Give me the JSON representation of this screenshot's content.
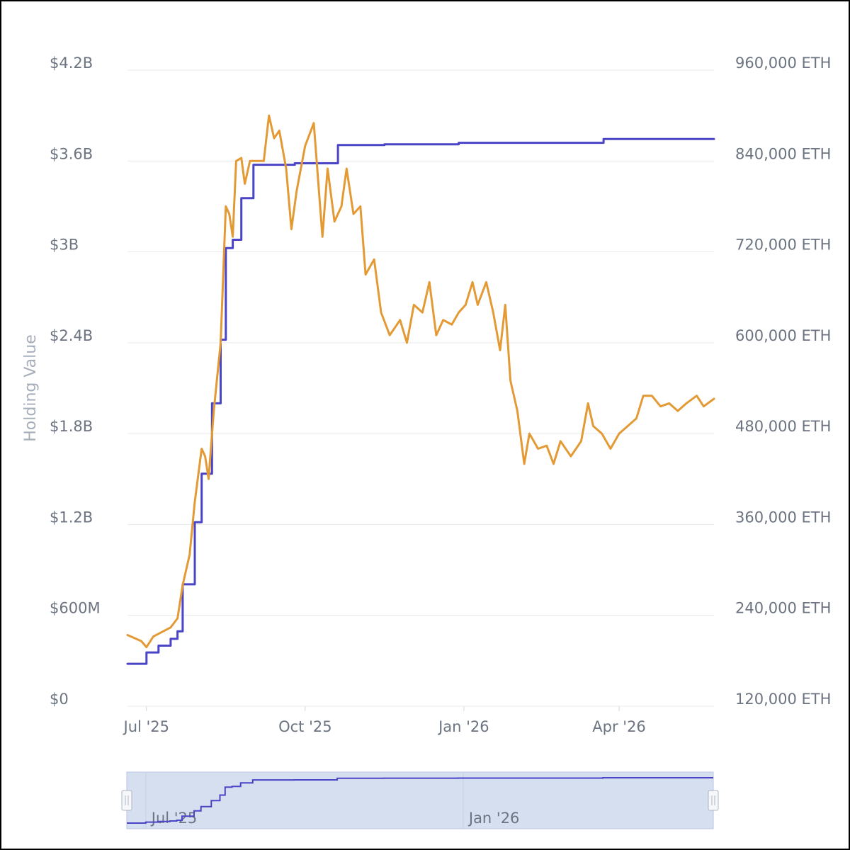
{
  "chart_data": {
    "type": "line",
    "title": "",
    "ylabel": "Holding Value",
    "ylim": [
      0,
      4200000000
    ],
    "y2lim": [
      120000,
      960000
    ],
    "yticks": [
      0,
      600000000,
      1200000000,
      1800000000,
      2400000000,
      3000000000,
      3600000000,
      4200000000
    ],
    "ytick_labels": [
      "$0",
      "$600M",
      "$1.2B",
      "$1.8B",
      "$2.4B",
      "$3B",
      "$3.6B",
      "$4.2B"
    ],
    "y2ticks": [
      120000,
      240000,
      360000,
      480000,
      600000,
      720000,
      840000,
      960000
    ],
    "y2tick_labels": [
      "120,000 ETH",
      "240,000 ETH",
      "360,000 ETH",
      "480,000 ETH",
      "600,000 ETH",
      "720,000 ETH",
      "840,000 ETH",
      "960,000 ETH"
    ],
    "xlim": [
      "2025-06-20",
      "2026-05-26"
    ],
    "xticks": [
      "2025-07-01",
      "2025-10-01",
      "2026-01-01",
      "2026-04-01"
    ],
    "xtick_labels": [
      "Jul '25",
      "Oct '25",
      "Jan '26",
      "Apr '26"
    ],
    "grid": true,
    "series": [
      {
        "name": "",
        "axis": "right",
        "color": "#4a44c6",
        "step": true,
        "points": [
          [
            "2025-06-20",
            176000
          ],
          [
            "2025-06-30",
            176000
          ],
          [
            "2025-07-01",
            191000
          ],
          [
            "2025-07-07",
            191000
          ],
          [
            "2025-07-08",
            200000
          ],
          [
            "2025-07-14",
            200000
          ],
          [
            "2025-07-15",
            209000
          ],
          [
            "2025-07-18",
            209000
          ],
          [
            "2025-07-19",
            219000
          ],
          [
            "2025-07-21",
            219000
          ],
          [
            "2025-07-22",
            281000
          ],
          [
            "2025-07-28",
            281000
          ],
          [
            "2025-07-29",
            363000
          ],
          [
            "2025-08-01",
            363000
          ],
          [
            "2025-08-02",
            427000
          ],
          [
            "2025-08-07",
            427000
          ],
          [
            "2025-08-08",
            520000
          ],
          [
            "2025-08-12",
            520000
          ],
          [
            "2025-08-13",
            604000
          ],
          [
            "2025-08-15",
            604000
          ],
          [
            "2025-08-16",
            725000
          ],
          [
            "2025-08-19",
            725000
          ],
          [
            "2025-08-20",
            736000
          ],
          [
            "2025-08-24",
            736000
          ],
          [
            "2025-08-25",
            791000
          ],
          [
            "2025-08-31",
            791000
          ],
          [
            "2025-09-01",
            835000
          ],
          [
            "2025-09-24",
            835000
          ],
          [
            "2025-09-25",
            837000
          ],
          [
            "2025-10-19",
            837000
          ],
          [
            "2025-10-20",
            861000
          ],
          [
            "2025-11-15",
            861000
          ],
          [
            "2025-11-16",
            862000
          ],
          [
            "2025-12-28",
            862000
          ],
          [
            "2025-12-29",
            864000
          ],
          [
            "2026-03-22",
            864000
          ],
          [
            "2026-03-23",
            869000
          ],
          [
            "2026-05-26",
            869000
          ]
        ]
      },
      {
        "name": "",
        "axis": "left",
        "color": "#e39a35",
        "step": false,
        "points": [
          [
            "2025-06-20",
            470000000
          ],
          [
            "2025-06-24",
            450000000
          ],
          [
            "2025-06-28",
            430000000
          ],
          [
            "2025-07-01",
            390000000
          ],
          [
            "2025-07-05",
            460000000
          ],
          [
            "2025-07-10",
            490000000
          ],
          [
            "2025-07-15",
            520000000
          ],
          [
            "2025-07-19",
            580000000
          ],
          [
            "2025-07-22",
            800000000
          ],
          [
            "2025-07-26",
            1000000000
          ],
          [
            "2025-07-29",
            1350000000
          ],
          [
            "2025-08-02",
            1700000000
          ],
          [
            "2025-08-04",
            1650000000
          ],
          [
            "2025-08-06",
            1500000000
          ],
          [
            "2025-08-09",
            1950000000
          ],
          [
            "2025-08-13",
            2400000000
          ],
          [
            "2025-08-16",
            3300000000
          ],
          [
            "2025-08-18",
            3250000000
          ],
          [
            "2025-08-20",
            3100000000
          ],
          [
            "2025-08-22",
            3600000000
          ],
          [
            "2025-08-25",
            3620000000
          ],
          [
            "2025-08-27",
            3450000000
          ],
          [
            "2025-08-30",
            3600000000
          ],
          [
            "2025-09-03",
            3600000000
          ],
          [
            "2025-09-07",
            3600000000
          ],
          [
            "2025-09-10",
            3900000000
          ],
          [
            "2025-09-13",
            3750000000
          ],
          [
            "2025-09-16",
            3800000000
          ],
          [
            "2025-09-20",
            3550000000
          ],
          [
            "2025-09-23",
            3150000000
          ],
          [
            "2025-09-26",
            3400000000
          ],
          [
            "2025-10-01",
            3700000000
          ],
          [
            "2025-10-06",
            3850000000
          ],
          [
            "2025-10-09",
            3400000000
          ],
          [
            "2025-10-11",
            3100000000
          ],
          [
            "2025-10-14",
            3550000000
          ],
          [
            "2025-10-18",
            3200000000
          ],
          [
            "2025-10-22",
            3300000000
          ],
          [
            "2025-10-25",
            3550000000
          ],
          [
            "2025-10-29",
            3250000000
          ],
          [
            "2025-11-02",
            3300000000
          ],
          [
            "2025-11-05",
            2850000000
          ],
          [
            "2025-11-10",
            2950000000
          ],
          [
            "2025-11-14",
            2600000000
          ],
          [
            "2025-11-19",
            2450000000
          ],
          [
            "2025-11-25",
            2550000000
          ],
          [
            "2025-11-29",
            2400000000
          ],
          [
            "2025-12-03",
            2650000000
          ],
          [
            "2025-12-08",
            2600000000
          ],
          [
            "2025-12-12",
            2800000000
          ],
          [
            "2025-12-16",
            2450000000
          ],
          [
            "2025-12-20",
            2550000000
          ],
          [
            "2025-12-25",
            2520000000
          ],
          [
            "2025-12-29",
            2600000000
          ],
          [
            "2026-01-02",
            2650000000
          ],
          [
            "2026-01-06",
            2800000000
          ],
          [
            "2026-01-09",
            2650000000
          ],
          [
            "2026-01-14",
            2800000000
          ],
          [
            "2026-01-18",
            2600000000
          ],
          [
            "2026-01-22",
            2350000000
          ],
          [
            "2026-01-25",
            2650000000
          ],
          [
            "2026-01-28",
            2150000000
          ],
          [
            "2026-02-01",
            1950000000
          ],
          [
            "2026-02-05",
            1600000000
          ],
          [
            "2026-02-08",
            1800000000
          ],
          [
            "2026-02-13",
            1700000000
          ],
          [
            "2026-02-18",
            1720000000
          ],
          [
            "2026-02-22",
            1600000000
          ],
          [
            "2026-02-26",
            1750000000
          ],
          [
            "2026-03-04",
            1650000000
          ],
          [
            "2026-03-10",
            1750000000
          ],
          [
            "2026-03-14",
            2000000000
          ],
          [
            "2026-03-17",
            1850000000
          ],
          [
            "2026-03-22",
            1800000000
          ],
          [
            "2026-03-27",
            1700000000
          ],
          [
            "2026-04-01",
            1800000000
          ],
          [
            "2026-04-06",
            1850000000
          ],
          [
            "2026-04-11",
            1900000000
          ],
          [
            "2026-04-15",
            2050000000
          ],
          [
            "2026-04-20",
            2050000000
          ],
          [
            "2026-04-25",
            1980000000
          ],
          [
            "2026-04-30",
            2000000000
          ],
          [
            "2026-05-05",
            1950000000
          ],
          [
            "2026-05-10",
            2000000000
          ],
          [
            "2026-05-16",
            2050000000
          ],
          [
            "2026-05-20",
            1980000000
          ],
          [
            "2026-05-26",
            2030000000
          ]
        ]
      }
    ]
  },
  "navigator": {
    "tick_labels": [
      "Jul '25",
      "Jan '26"
    ],
    "tick_dates": [
      "2025-07-01",
      "2026-01-01"
    ]
  },
  "colors": {
    "holdings_line": "#4a44c6",
    "value_line": "#e39a35",
    "navigator_fill": "#d6dff0",
    "navigator_border": "#b7c4e4"
  }
}
